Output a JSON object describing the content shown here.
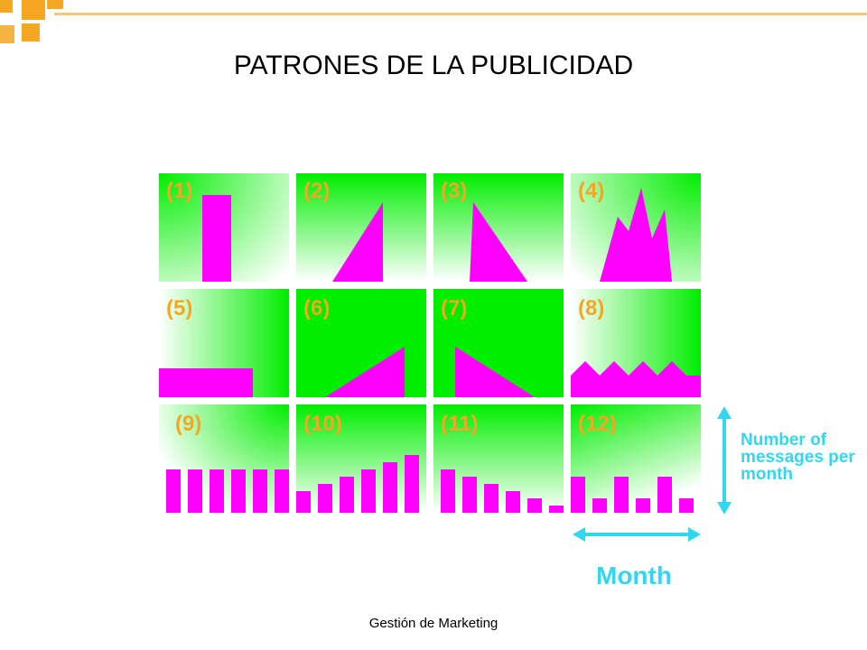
{
  "slide": {
    "title": "PATRONES DE LA PUBLICIDAD",
    "footer": "Gestión de Marketing"
  },
  "panels": [
    {
      "label": "(1)"
    },
    {
      "label": "(2)"
    },
    {
      "label": "(3)"
    },
    {
      "label": "(4)"
    },
    {
      "label": "(5)"
    },
    {
      "label": "(6)"
    },
    {
      "label": "(7)"
    },
    {
      "label": "(8)"
    },
    {
      "label": "(9)"
    },
    {
      "label": "(10)"
    },
    {
      "label": "(11)"
    },
    {
      "label": "(12)"
    }
  ],
  "axes": {
    "y_label": "Number of messages per month",
    "x_label": "Month"
  },
  "colors": {
    "panel_green": "#00ee00",
    "shape_magenta": "#ff00ff",
    "label_orange": "#f5a623",
    "axis_cyan": "#33d6f0"
  }
}
